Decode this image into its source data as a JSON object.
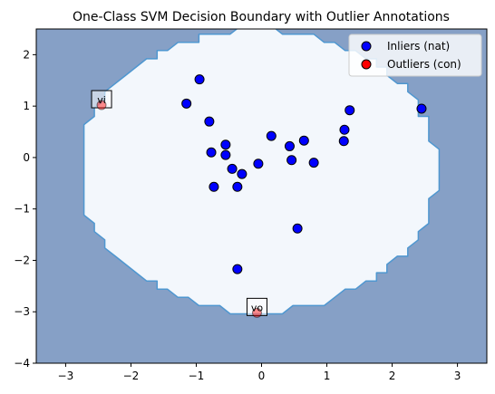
{
  "chart_data": {
    "type": "scatter",
    "title": "One-Class SVM Decision Boundary with Outlier Annotations",
    "xlabel": "",
    "ylabel": "",
    "xlim": [
      -3.45,
      3.45
    ],
    "ylim": [
      -4.0,
      2.5
    ],
    "x_ticks": [
      -3,
      -2,
      -1,
      0,
      1,
      2,
      3
    ],
    "y_ticks": [
      -4,
      -3,
      -2,
      -1,
      0,
      1,
      2
    ],
    "grid": false,
    "legend_position": "top-right",
    "colors": {
      "background_region": "#86a0c6",
      "inside_region": "#f3f7fc",
      "boundary_line": "#4f97d0",
      "inlier_fill": "#0000ff",
      "outlier_fill": "#ff0000",
      "marker_edge": "#000000"
    },
    "boundary": {
      "center": [
        -0.05,
        -0.25
      ],
      "radius_x": 2.75,
      "radius_y": 2.75
    },
    "series": [
      {
        "name": "Inliers (nat)",
        "marker": "circle",
        "color": "#0000ff",
        "points": [
          [
            -0.95,
            1.52
          ],
          [
            -1.15,
            1.05
          ],
          [
            -0.8,
            0.7
          ],
          [
            -0.77,
            0.1
          ],
          [
            -0.55,
            0.25
          ],
          [
            -0.55,
            0.05
          ],
          [
            -0.45,
            -0.22
          ],
          [
            -0.3,
            -0.32
          ],
          [
            -0.73,
            -0.57
          ],
          [
            -0.37,
            -0.57
          ],
          [
            -0.05,
            -0.12
          ],
          [
            0.15,
            0.42
          ],
          [
            0.43,
            0.22
          ],
          [
            0.46,
            -0.05
          ],
          [
            0.65,
            0.33
          ],
          [
            0.8,
            -0.1
          ],
          [
            0.55,
            -1.38
          ],
          [
            -0.37,
            -2.17
          ],
          [
            1.27,
            0.54
          ],
          [
            1.26,
            0.32
          ],
          [
            1.35,
            0.92
          ],
          [
            2.45,
            0.95
          ]
        ]
      },
      {
        "name": "Outliers (con)",
        "marker": "circle",
        "color": "#ff0000",
        "points": [
          [
            -2.45,
            1.02
          ],
          [
            -0.07,
            -3.02
          ]
        ],
        "labels": [
          "vi",
          "vo"
        ]
      }
    ]
  }
}
